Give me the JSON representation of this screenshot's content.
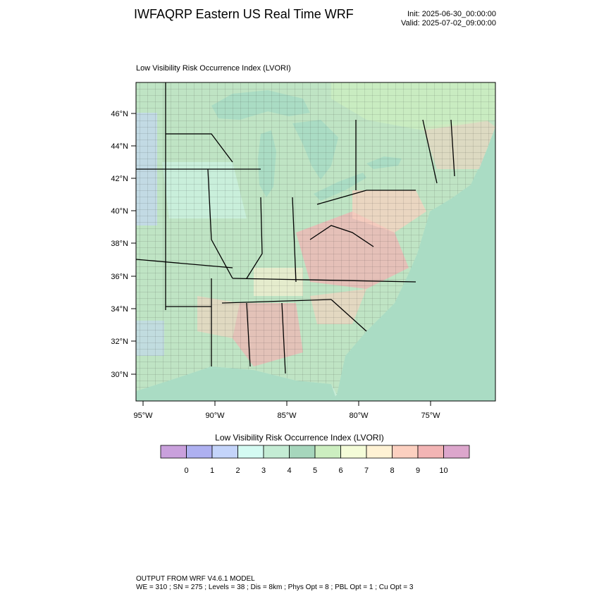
{
  "header": {
    "title": "IWFAQRP Eastern US Real Time WRF",
    "init": "Init: 2025-06-30_00:00:00",
    "valid": "Valid: 2025-07-02_09:00:00"
  },
  "plot": {
    "title": "Low Visibility Risk Occurrence Index   (LVORI)",
    "lat_ticks": [
      "30°N",
      "32°N",
      "34°N",
      "36°N",
      "38°N",
      "40°N",
      "42°N",
      "44°N",
      "46°N"
    ],
    "lon_ticks": [
      "95°W",
      "90°W",
      "85°W",
      "80°W",
      "75°W"
    ]
  },
  "colorbar": {
    "title": "Low Visibility Risk Occurrence Index  (LVORI)",
    "labels": [
      "0",
      "1",
      "2",
      "3",
      "4",
      "5",
      "6",
      "7",
      "8",
      "9",
      "10"
    ],
    "colors": [
      "#c9a0dc",
      "#aeb0f0",
      "#c4d4fa",
      "#d4faf2",
      "#c4ecd4",
      "#a6d6bc",
      "#cceec0",
      "#f4fcd8",
      "#fff2d4",
      "#fcd0c0",
      "#f2b4b4",
      "#dca6cc"
    ]
  },
  "map_colors": {
    "background": "#c6ecd6",
    "water": "#aadcc4",
    "land_base": "#bfe4c4"
  },
  "footer": {
    "line1": "OUTPUT FROM WRF V4.6.1 MODEL",
    "line2": "WE = 310 ; SN = 275 ; Levels = 38 ; Dis = 8km ; Phys Opt = 8 ; PBL Opt = 1 ; Cu Opt = 3"
  }
}
